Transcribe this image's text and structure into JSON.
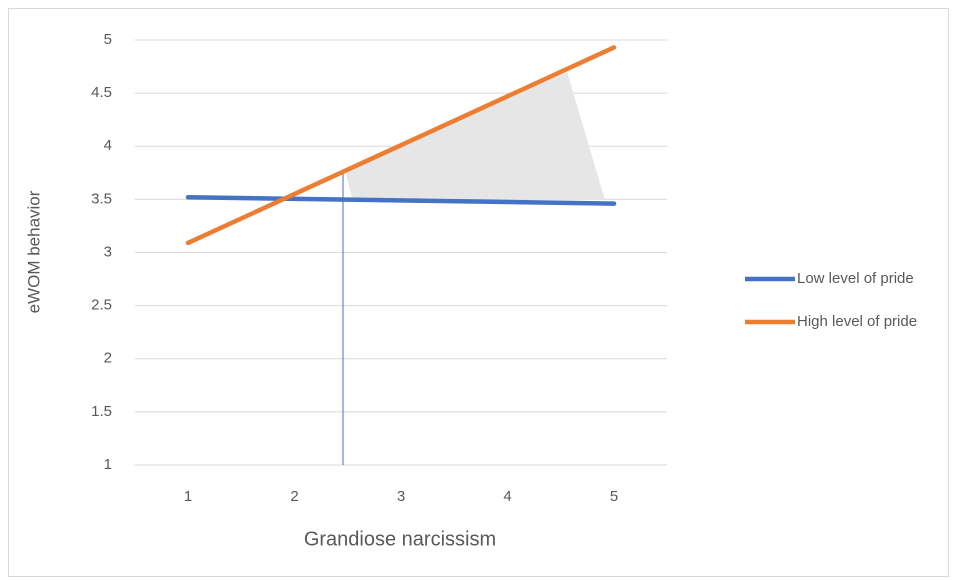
{
  "chart_data": {
    "type": "line",
    "x_label": "Grandiose narcissism",
    "y_label": "eWOM behavior",
    "x": [
      1,
      5
    ],
    "series": [
      {
        "name": "Low level of pride",
        "color": "#4472c4",
        "values": [
          3.52,
          3.46
        ]
      },
      {
        "name": "High level of pride",
        "color": "#ed7d31",
        "values": [
          3.09,
          4.93
        ]
      }
    ],
    "xlim": [
      0.5,
      5.5
    ],
    "xticks": [
      1,
      2,
      3,
      4,
      5
    ],
    "ylim": [
      1,
      5
    ],
    "yticks": [
      1,
      1.5,
      2,
      2.5,
      3,
      3.5,
      4,
      4.5,
      5
    ],
    "grid": true,
    "legend": "right"
  }
}
